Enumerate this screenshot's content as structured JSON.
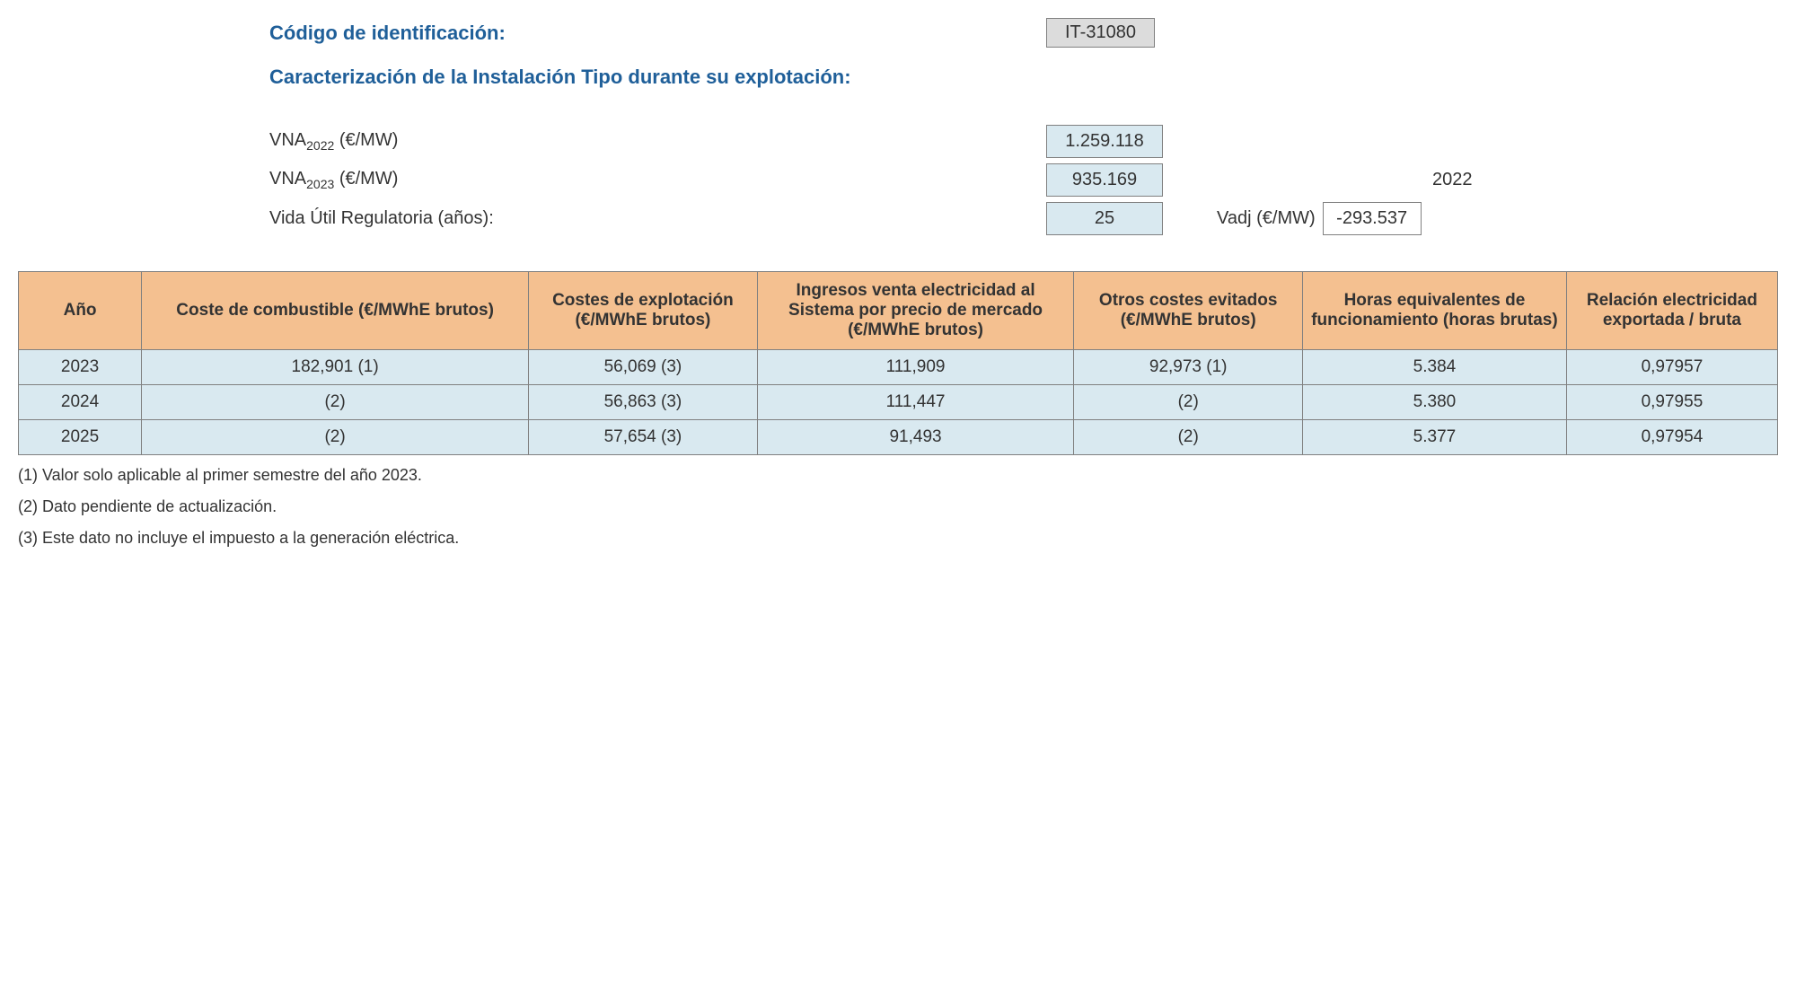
{
  "header": {
    "code_label": "Código de identificación:",
    "code_value": "IT-31080",
    "section_title": "Caracterización de la Instalación Tipo durante su explotación:"
  },
  "params": {
    "vna2022_label_prefix": "VNA",
    "vna2022_sub": "2022",
    "vna2022_unit": " (€/MW)",
    "vna2022_value": "1.259.118",
    "vna2023_label_prefix": "VNA",
    "vna2023_sub": "2023",
    "vna2023_unit": " (€/MW)",
    "vna2023_value": "935.169",
    "year_right": "2022",
    "vida_label": "Vida Útil Regulatoria (años):",
    "vida_value": "25",
    "vadj_label": "Vadj (€/MW)",
    "vadj_value": "-293.537"
  },
  "table": {
    "columns": [
      "Año",
      "Coste de combustible (€/MWhE brutos)",
      "Costes de explotación (€/MWhE brutos)",
      "Ingresos venta electricidad al Sistema por precio de mercado (€/MWhE brutos)",
      "Otros costes evitados (€/MWhE brutos)",
      "Horas equivalentes de funcionamiento (horas brutas)",
      "Relación electricidad exportada / bruta"
    ],
    "rows": [
      [
        "2023",
        "182,901 (1)",
        "56,069 (3)",
        "111,909",
        "92,973 (1)",
        "5.384",
        "0,97957"
      ],
      [
        "2024",
        "(2)",
        "56,863 (3)",
        "111,447",
        "(2)",
        "5.380",
        "0,97955"
      ],
      [
        "2025",
        "(2)",
        "57,654 (3)",
        "91,493",
        "(2)",
        "5.377",
        "0,97954"
      ]
    ],
    "col_widths": [
      "7%",
      "22%",
      "13%",
      "18%",
      "13%",
      "15%",
      "12%"
    ]
  },
  "footnotes": [
    "(1) Valor solo aplicable al primer semestre del año 2023.",
    "(2) Dato pendiente de actualización.",
    "(3) Este dato no incluye el impuesto a la generación eléctrica."
  ],
  "colors": {
    "header_bg": "#f4c090",
    "cell_bg": "#d9e9f0",
    "border": "#808080",
    "title": "#1f5f99",
    "code_bg": "#dcdcdc"
  }
}
